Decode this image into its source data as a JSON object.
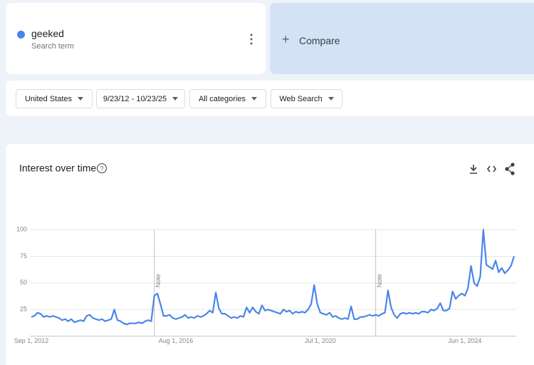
{
  "search": {
    "term": "geeked",
    "subtitle": "Search term"
  },
  "compare": "Compare",
  "filters": [
    "United States",
    "9/23/12 - 10/23/25",
    "All categories",
    "Web Search"
  ],
  "chart_data": {
    "type": "line",
    "title": "Interest over time",
    "color": "#4a86e8",
    "grid": true,
    "ylim": [
      0,
      100
    ],
    "yticks": [
      25,
      50,
      75,
      100
    ],
    "categories": [
      "Sep 1, 2012",
      null,
      null,
      null,
      null,
      null,
      null,
      null,
      null,
      null,
      null,
      null,
      null,
      null,
      null,
      null,
      null,
      null,
      null,
      null,
      null,
      null,
      null,
      null,
      null,
      null,
      null,
      null,
      null,
      null,
      null,
      null,
      null,
      null,
      null,
      null,
      null,
      null,
      null,
      null,
      null,
      null,
      null,
      null,
      null,
      null,
      null,
      "Aug 1, 2016",
      null,
      null,
      null,
      null,
      null,
      null,
      null,
      null,
      null,
      null,
      null,
      null,
      null,
      null,
      null,
      null,
      null,
      null,
      null,
      null,
      null,
      null,
      null,
      null,
      null,
      null,
      null,
      null,
      null,
      null,
      null,
      null,
      null,
      null,
      null,
      null,
      null,
      null,
      null,
      null,
      null,
      null,
      null,
      null,
      null,
      null,
      "Jul 1, 2020",
      null,
      null,
      null,
      null,
      null,
      null,
      null,
      null,
      null,
      null,
      null,
      null,
      null,
      null,
      null,
      null,
      null,
      null,
      null,
      null,
      null,
      null,
      null,
      null,
      null,
      null,
      null,
      null,
      null,
      null,
      null,
      null,
      null,
      null,
      null,
      null,
      null,
      null,
      null,
      null,
      null,
      null,
      null,
      null,
      null,
      null,
      "Jun 1, 2024",
      null,
      null,
      null,
      null,
      null,
      null,
      null,
      null,
      null,
      null,
      null,
      null,
      null,
      null,
      null,
      null
    ],
    "values": [
      18,
      19,
      22,
      21,
      18,
      19,
      18,
      19,
      18,
      17,
      15,
      16,
      14,
      16,
      13,
      14,
      15,
      14,
      19,
      20,
      17,
      16,
      15,
      16,
      14,
      15,
      16,
      25,
      15,
      14,
      12,
      11,
      12,
      12,
      12,
      13,
      12,
      14,
      15,
      14,
      38,
      40,
      30,
      19,
      19,
      20,
      17,
      16,
      17,
      18,
      20,
      17,
      18,
      17,
      19,
      18,
      19,
      21,
      24,
      22,
      41,
      26,
      21,
      21,
      19,
      17,
      18,
      17,
      19,
      18,
      27,
      22,
      27,
      23,
      21,
      29,
      24,
      25,
      24,
      23,
      22,
      21,
      25,
      23,
      24,
      21,
      23,
      22,
      23,
      22,
      25,
      30,
      48,
      30,
      22,
      21,
      20,
      22,
      18,
      19,
      17,
      16,
      17,
      16,
      28,
      16,
      16,
      18,
      18,
      19,
      20,
      19,
      20,
      19,
      21,
      22,
      43,
      27,
      20,
      17,
      21,
      22,
      21,
      22,
      21,
      22,
      21,
      23,
      23,
      22,
      25,
      24,
      26,
      31,
      24,
      24,
      26,
      42,
      35,
      38,
      40,
      38,
      45,
      66,
      50,
      47,
      56,
      100,
      67,
      65,
      63,
      71,
      60,
      64,
      59,
      62,
      66,
      75
    ],
    "annotations": [
      {
        "text": "Note",
        "at": 40
      },
      {
        "text": "Note",
        "at": 112
      }
    ]
  }
}
